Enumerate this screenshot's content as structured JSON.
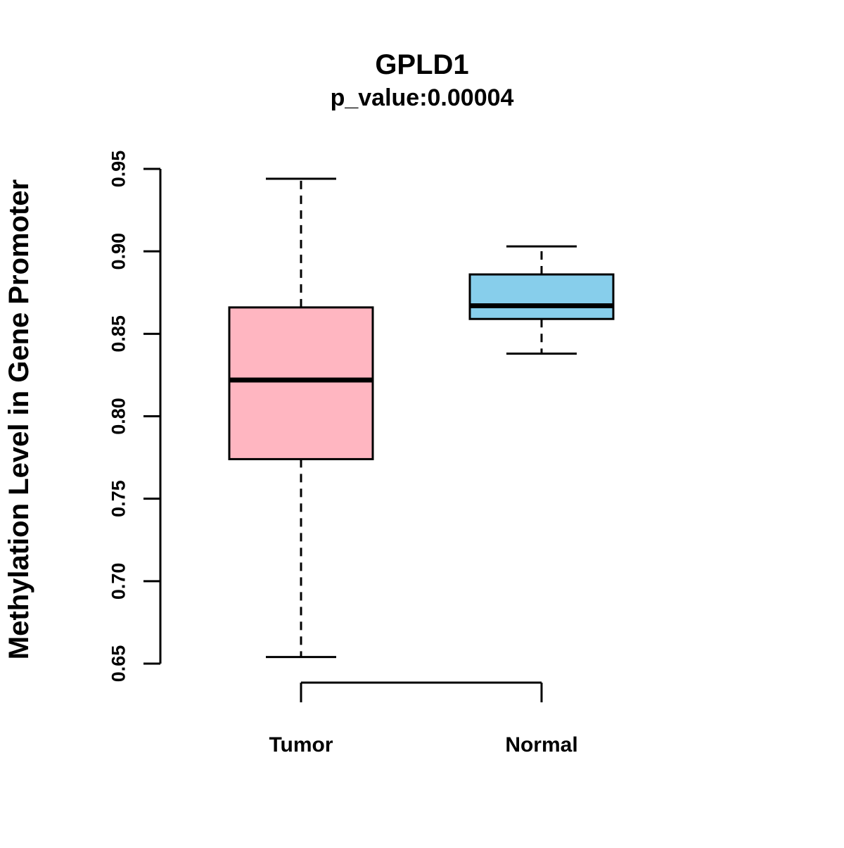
{
  "chart_data": {
    "type": "boxplot",
    "title": "GPLD1",
    "subtitle": "p_value:0.00004",
    "ylabel": "Methylation Level in Gene Promoter",
    "xlabel": "",
    "categories": [
      "Tumor",
      "Normal"
    ],
    "ylim": [
      0.65,
      0.95
    ],
    "yticks": [
      0.65,
      0.7,
      0.75,
      0.8,
      0.85,
      0.9,
      0.95
    ],
    "grid": false,
    "legend": "none",
    "colors": {
      "tumor_fill": "#FFB6C1",
      "normal_fill": "#87CEEB",
      "axis": "#000000"
    },
    "groups": [
      {
        "name": "Tumor",
        "color": "#FFB6C1",
        "whisker_low": 0.654,
        "q1": 0.774,
        "median": 0.822,
        "q3": 0.866,
        "whisker_high": 0.944
      },
      {
        "name": "Normal",
        "color": "#87CEEB",
        "whisker_low": 0.838,
        "q1": 0.859,
        "median": 0.867,
        "q3": 0.886,
        "whisker_high": 0.903
      }
    ]
  }
}
